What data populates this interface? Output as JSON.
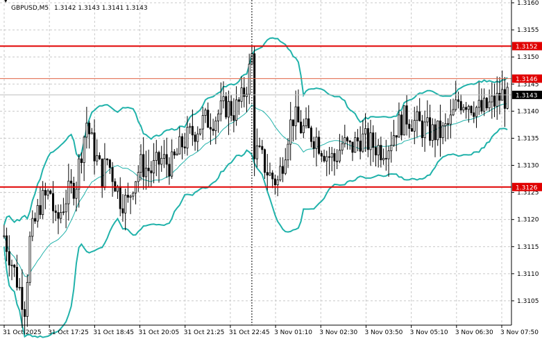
{
  "symbol_header": {
    "symbol": "GBPUSD,M5",
    "ohlc": "1.3142 1.3143 1.3141 1.3143"
  },
  "colors": {
    "background": "#ffffff",
    "grid": "#c8c8c8",
    "candle": "#000000",
    "bollinger": "#20b2aa",
    "level_line": "#e00000",
    "level_line_thin": "#e06040",
    "current_price_label_bg": "#000000",
    "level_label_bg": "#e00000"
  },
  "chart_data": {
    "type": "candlestick",
    "ylim": [
      1.31,
      1.316
    ],
    "y_ticks": [
      "1.3160",
      "1.3155",
      "1.3150",
      "1.3145",
      "1.3140",
      "1.3135",
      "1.3130",
      "1.3125",
      "1.3120",
      "1.3115",
      "1.3110",
      "1.3105"
    ],
    "x_ticks": [
      "31 Oct 2025",
      "31 Oct 17:25",
      "31 Oct 18:45",
      "31 Oct 20:05",
      "31 Oct 21:25",
      "31 Oct 22:45",
      "3 Nov 01:10",
      "3 Nov 02:30",
      "3 Nov 03:50",
      "3 Nov 05:10",
      "3 Nov 06:30",
      "3 Nov 07:50"
    ],
    "levels": [
      {
        "label": "1.3152",
        "value": 1.3152,
        "style": "thick"
      },
      {
        "label": "1.3146",
        "value": 1.3146,
        "style": "thin"
      },
      {
        "label": "1.3126",
        "value": 1.3126,
        "style": "thick"
      }
    ],
    "current_price": {
      "label": "1.3143",
      "value": 1.3143
    },
    "session_separator_index": 96,
    "candles": [],
    "bands": {
      "upper": [],
      "middle": [],
      "lower": []
    }
  }
}
